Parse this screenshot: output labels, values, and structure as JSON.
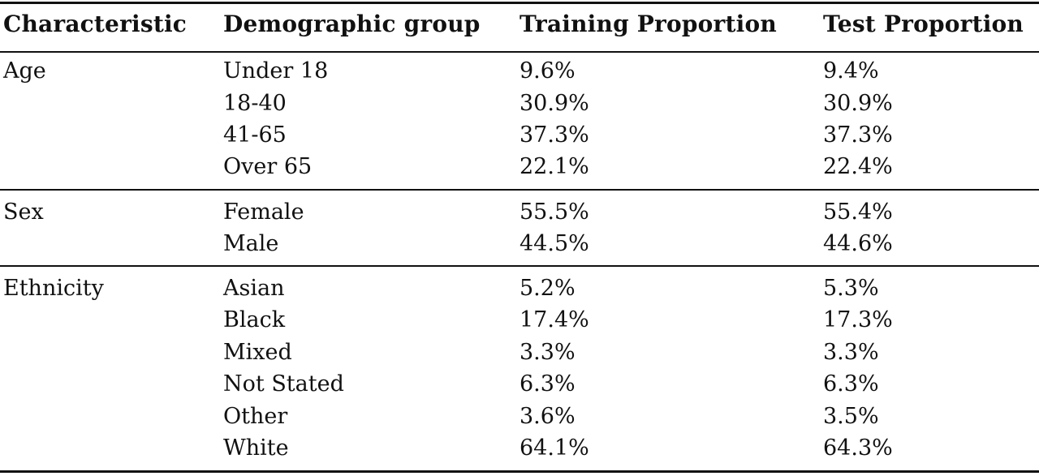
{
  "table": {
    "headers": [
      "Characteristic",
      "Demographic group",
      "Training Proportion",
      "Test Proportion"
    ],
    "groups": [
      {
        "characteristic": "Age",
        "rows": [
          {
            "group": "Under 18",
            "training": "9.6%",
            "test": "9.4%"
          },
          {
            "group": "18-40",
            "training": "30.9%",
            "test": "30.9%"
          },
          {
            "group": "41-65",
            "training": "37.3%",
            "test": "37.3%"
          },
          {
            "group": "Over 65",
            "training": "22.1%",
            "test": "22.4%"
          }
        ]
      },
      {
        "characteristic": "Sex",
        "rows": [
          {
            "group": "Female",
            "training": "55.5%",
            "test": "55.4%"
          },
          {
            "group": "Male",
            "training": "44.5%",
            "test": "44.6%"
          }
        ]
      },
      {
        "characteristic": "Ethnicity",
        "rows": [
          {
            "group": "Asian",
            "training": "5.2%",
            "test": "5.3%"
          },
          {
            "group": "Black",
            "training": "17.4%",
            "test": "17.3%"
          },
          {
            "group": "Mixed",
            "training": "3.3%",
            "test": "3.3%"
          },
          {
            "group": "Not Stated",
            "training": "6.3%",
            "test": "6.3%"
          },
          {
            "group": "Other",
            "training": "3.6%",
            "test": "3.5%"
          },
          {
            "group": "White",
            "training": "64.1%",
            "test": "64.3%"
          }
        ]
      }
    ]
  }
}
